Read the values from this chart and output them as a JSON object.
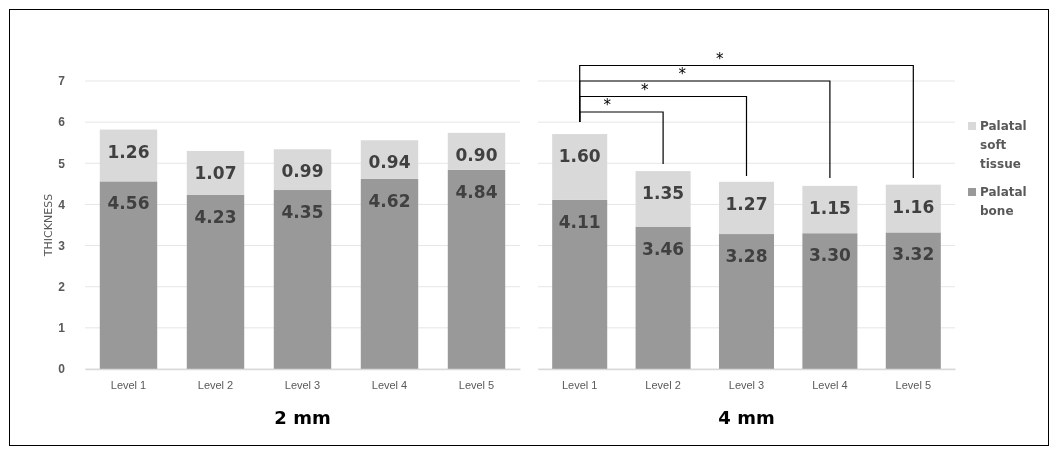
{
  "chart_data": [
    {
      "type": "bar",
      "stacked": true,
      "xlabel": "2 mm",
      "ylabel": "THICKNESS",
      "categories": [
        "Level 1",
        "Level 2",
        "Level 3",
        "Level 4",
        "Level 5"
      ],
      "series": [
        {
          "color": "#999999",
          "values": [
            4.56,
            4.23,
            4.35,
            4.62,
            4.84
          ],
          "value_labels": [
            "4.56",
            "4.23",
            "4.35",
            "4.62",
            "4.84"
          ]
        },
        {
          "color": "#d9d9d9",
          "values": [
            1.26,
            1.07,
            0.99,
            0.94,
            0.9
          ],
          "value_labels": [
            "1.26",
            "1.07",
            "0.99",
            "0.94",
            "0.90"
          ]
        }
      ],
      "ylim": [
        0,
        7
      ],
      "yticks": [
        0,
        1,
        2,
        3,
        4,
        5,
        6,
        7
      ],
      "grid": "y",
      "legend": false
    },
    {
      "type": "bar",
      "stacked": true,
      "xlabel": "4 mm",
      "categories": [
        "Level 1",
        "Level 2",
        "Level 3",
        "Level 4",
        "Level 5"
      ],
      "series": [
        {
          "name": "Palatal bone",
          "color": "#999999",
          "values": [
            4.11,
            3.46,
            3.28,
            3.3,
            3.32
          ],
          "value_labels": [
            "4.11",
            "3.46",
            "3.28",
            "3.30",
            "3.32"
          ]
        },
        {
          "name": "Palatal soft tissue",
          "color": "#d9d9d9",
          "values": [
            1.6,
            1.35,
            1.27,
            1.15,
            1.16
          ],
          "value_labels": [
            "1.60",
            "1.35",
            "1.27",
            "1.15",
            "1.16"
          ]
        }
      ],
      "ylim": [
        0,
        7
      ],
      "yticks": [
        0,
        1,
        2,
        3,
        4,
        5,
        6,
        7
      ],
      "grid": "y",
      "legend": "right",
      "tick_labels": "x",
      "annotations": [
        "*",
        "*",
        "*",
        "*"
      ]
    }
  ]
}
